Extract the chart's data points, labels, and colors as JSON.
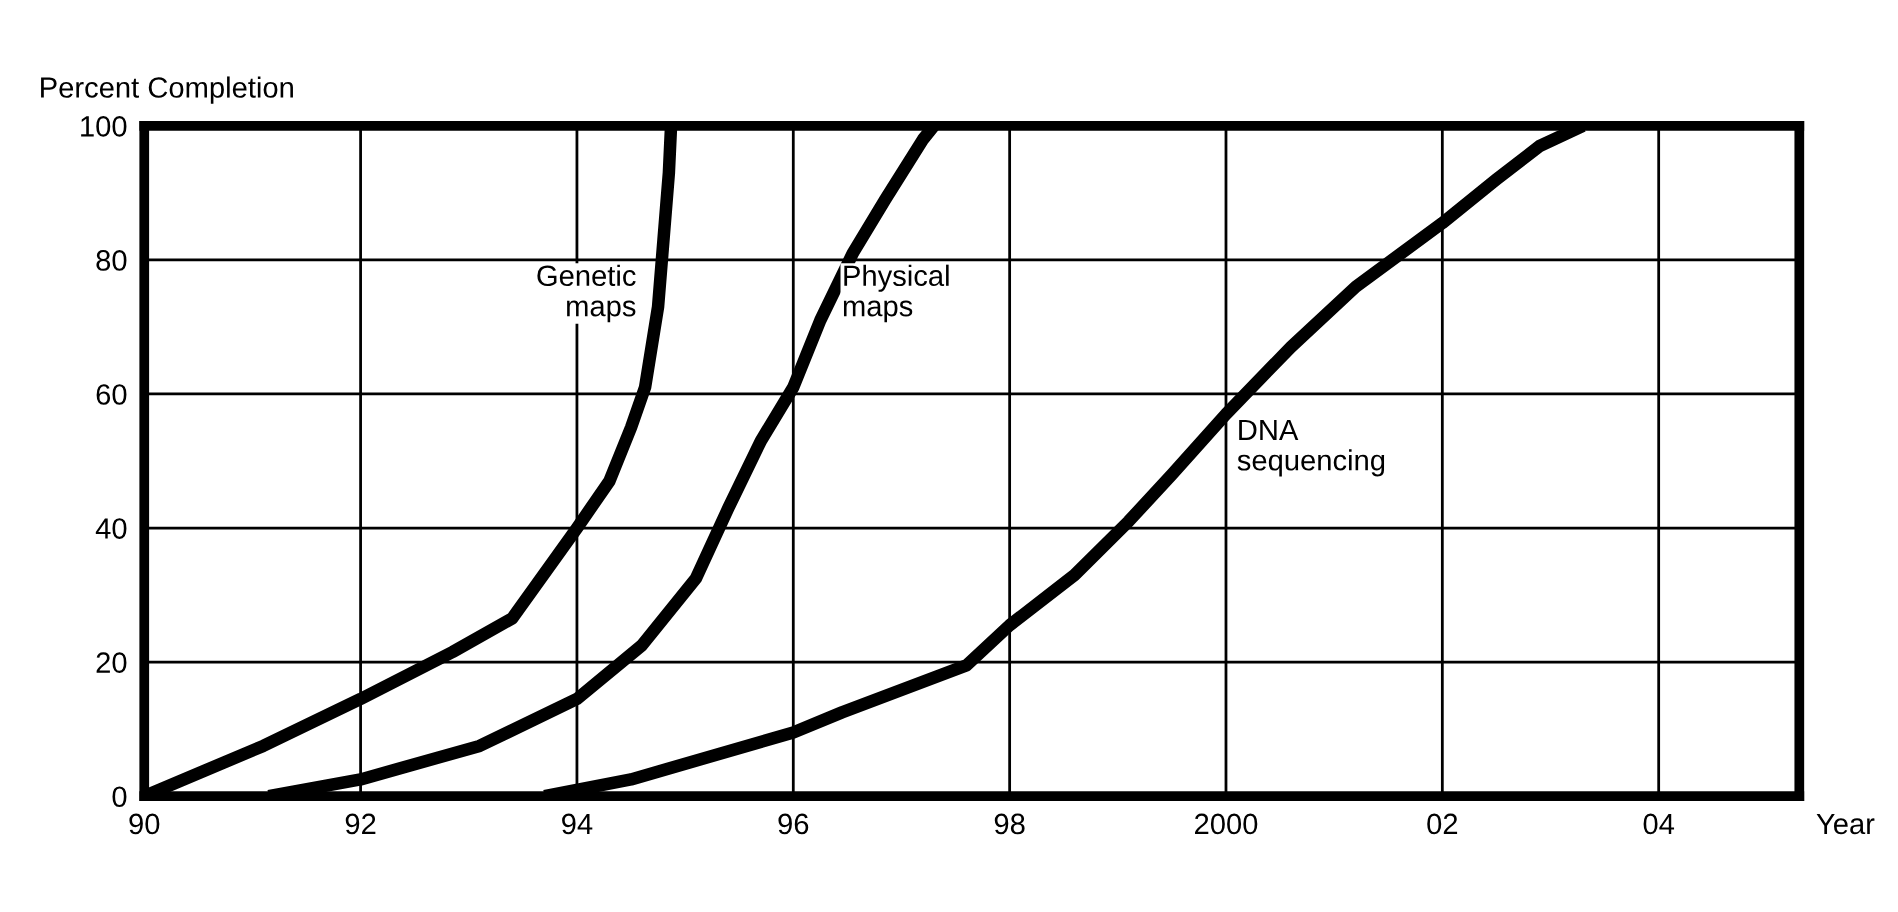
{
  "chart_data": {
    "type": "line",
    "ylabel": "Percent Completion",
    "xlabel": "Year",
    "xlim": [
      1990,
      2005.3
    ],
    "ylim": [
      0,
      100
    ],
    "xticks": [
      {
        "value": 1990,
        "label": "90"
      },
      {
        "value": 1992,
        "label": "92"
      },
      {
        "value": 1994,
        "label": "94"
      },
      {
        "value": 1996,
        "label": "96"
      },
      {
        "value": 1998,
        "label": "98"
      },
      2000,
      {
        "value": 2002,
        "label": "02"
      },
      {
        "value": 2004,
        "label": "04"
      }
    ],
    "yticks": [
      0,
      20,
      40,
      60,
      80,
      100
    ],
    "grid": true,
    "legend": false,
    "marker": "none",
    "line_style": "solid",
    "series": [
      {
        "name": "Genetic maps",
        "color": "#000000",
        "x": [
          1990,
          1991.1,
          1992,
          1992.85,
          1993.4,
          1994,
          1994.3,
          1994.5,
          1994.63,
          1994.75,
          1994.8,
          1994.85,
          1994.87
        ],
        "values": [
          0,
          7.5,
          14.5,
          21.5,
          26.5,
          40,
          47,
          55,
          61,
          73,
          83,
          93,
          100
        ]
      },
      {
        "name": "Physical maps",
        "color": "#000000",
        "x": [
          1991.15,
          1992,
          1993.1,
          1994,
          1994.6,
          1995.1,
          1995.4,
          1995.7,
          1996,
          1996.25,
          1996.55,
          1996.85,
          1997.2,
          1997.3
        ],
        "values": [
          0,
          2.5,
          7.5,
          14.5,
          22.5,
          32.5,
          43,
          53,
          61,
          71,
          81,
          89,
          98,
          100
        ]
      },
      {
        "name": "DNA sequencing",
        "color": "#000000",
        "x": [
          1993.7,
          1994.5,
          1996,
          1996.45,
          1997.6,
          1998,
          1998.6,
          1999.1,
          1999.5,
          2000,
          2000.6,
          2001.2,
          2002,
          2002.5,
          2002.9,
          2003.3
        ],
        "values": [
          0,
          2.5,
          9.5,
          12.5,
          19.5,
          25.5,
          33,
          41,
          48,
          57,
          67,
          76,
          85.5,
          92,
          97,
          100
        ]
      }
    ]
  }
}
